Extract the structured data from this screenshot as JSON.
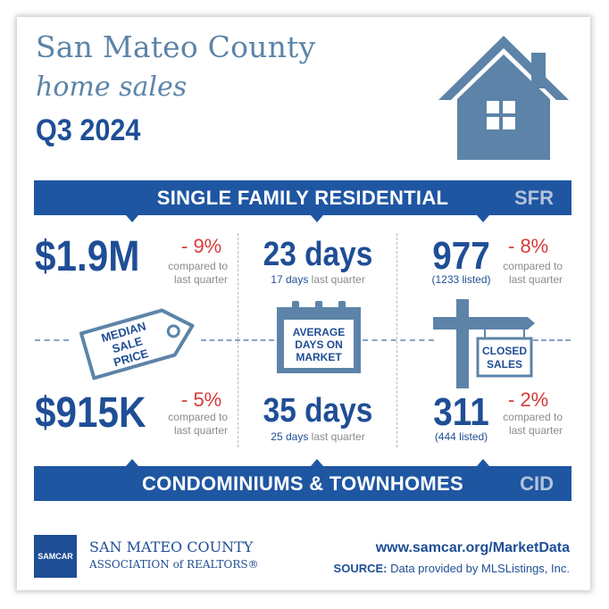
{
  "header": {
    "title_line1": "San Mateo County",
    "title_line2": "home sales",
    "period": "Q3 2024"
  },
  "sfr_band": {
    "label": "SINGLE FAMILY RESIDENTIAL",
    "abbr": "SFR"
  },
  "cid_band": {
    "label": "CONDOMINIUMS & TOWNHOMES",
    "abbr": "CID"
  },
  "sfr": {
    "median_price": "$1.9M",
    "median_change": "- 9%",
    "median_compare_1": "compared to",
    "median_compare_2": "last quarter",
    "dom": "23 days",
    "dom_prev_value": "17 days",
    "dom_prev_label": "last quarter",
    "closed": "977",
    "listed": "(1233 listed)",
    "closed_change": "- 8%",
    "closed_compare_1": "compared to",
    "closed_compare_2": "last quarter"
  },
  "cid": {
    "median_price": "$915K",
    "median_change": "- 5%",
    "median_compare_1": "compared to",
    "median_compare_2": "last quarter",
    "dom": "35 days",
    "dom_prev_value": "25 days",
    "dom_prev_label": "last quarter",
    "closed": "311",
    "listed": "(444 listed)",
    "closed_change": "- 2%",
    "closed_compare_1": "compared to",
    "closed_compare_2": "last quarter"
  },
  "icons": {
    "tag": {
      "name": "price-tag-icon",
      "lines": [
        "MEDIAN",
        "SALE",
        "PRICE"
      ]
    },
    "calendar": {
      "name": "calendar-icon",
      "lines": [
        "AVERAGE",
        "DAYS ON",
        "MARKET"
      ]
    },
    "sign": {
      "name": "sign-post-icon",
      "lines": [
        "CLOSED",
        "SALES"
      ]
    },
    "house": {
      "name": "house-icon"
    }
  },
  "footer": {
    "logo_text": "SAMCAR",
    "assoc_line1": "SAN MATEO COUNTY",
    "assoc_line2": "ASSOCIATION of REALTORS®",
    "url": "www.samcar.org/MarketData",
    "source_label": "SOURCE:",
    "source_text": "Data provided by MLSListings, Inc."
  },
  "colors": {
    "brand_blue": "#1f56a2",
    "title_blue": "#5d84a8",
    "negative_red": "#d73a3a",
    "icon_blue": "#5d84a8"
  }
}
